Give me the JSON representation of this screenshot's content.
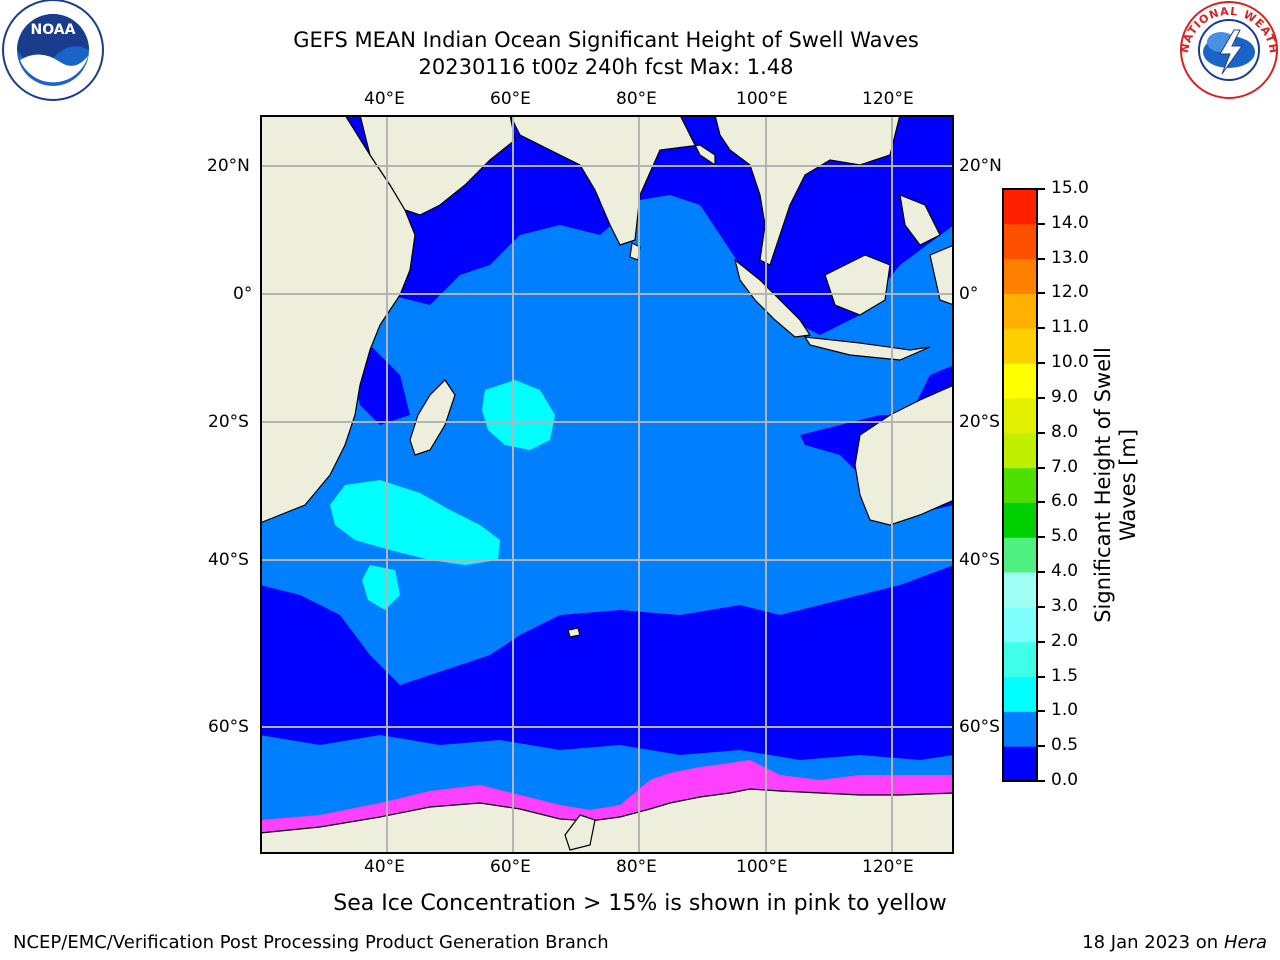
{
  "title_line1": "GEFS MEAN Indian Ocean Significant Height of Swell Waves",
  "title_line2": "20230116 t00z 240h fcst   Max: 1.48",
  "lon_labels": [
    "40°E",
    "60°E",
    "80°E",
    "100°E",
    "120°E"
  ],
  "lat_labels": [
    "20°N",
    "0°",
    "20°S",
    "40°S",
    "60°S"
  ],
  "colorbar": {
    "label_line1": "Significant Height of Swell",
    "label_line2": "Waves [m]",
    "ticks": [
      "0.0",
      "0.5",
      "1.0",
      "1.5",
      "2.0",
      "3.0",
      "4.0",
      "5.0",
      "6.0",
      "7.0",
      "8.0",
      "9.0",
      "10.0",
      "11.0",
      "12.0",
      "13.0",
      "14.0",
      "15.0"
    ],
    "colors": [
      "#0000ff",
      "#0080ff",
      "#00ffff",
      "#40ffe8",
      "#80ffff",
      "#a0fff4",
      "#50f080",
      "#00d000",
      "#50e000",
      "#c0f000",
      "#e0f000",
      "#ffff00",
      "#ffd000",
      "#ffb000",
      "#ff8000",
      "#ff5000",
      "#ff2000"
    ]
  },
  "map_colors": {
    "land": "#eeeedd",
    "grid": "#b4b4b4",
    "sea_ice": "#ff40ff"
  },
  "sea_ice_note": "Sea Ice Concentration > 15% is shown in pink to yellow",
  "footer_left": "NCEP/EMC/Verification Post Processing Product Generation Branch",
  "footer_right_prefix": "18 Jan 2023 on ",
  "footer_right_host": "Hera",
  "logos": {
    "noaa_text": "NOAA",
    "nws_text": "NATIONAL WEATHER SERVICE"
  }
}
